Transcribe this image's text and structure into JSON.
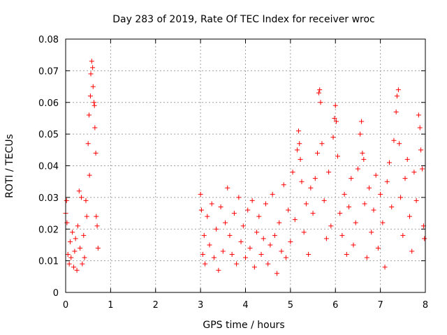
{
  "chart_data": {
    "type": "scatter",
    "title": "Day 283 of 2019, Rate Of TEC Index for receiver wroc",
    "xlabel": "GPS time / hours",
    "ylabel": "ROTI / TECUs",
    "xlim": [
      0,
      8
    ],
    "ylim": [
      0,
      0.08
    ],
    "xticks": [
      0,
      1,
      2,
      3,
      4,
      5,
      6,
      7,
      8
    ],
    "yticks": [
      0,
      0.01,
      0.02,
      0.03,
      0.04,
      0.05,
      0.06,
      0.07,
      0.08
    ],
    "xtick_labels": [
      "0",
      "1",
      "2",
      "3",
      "4",
      "5",
      "6",
      "7",
      "8"
    ],
    "ytick_labels": [
      "0",
      "0.01",
      "0.02",
      "0.03",
      "0.04",
      "0.05",
      "0.06",
      "0.07",
      "0.08"
    ],
    "grid": true,
    "marker": "+",
    "color": "#ff0000",
    "series": [
      {
        "name": "ROTI",
        "points": [
          [
            0.0,
            0.025
          ],
          [
            0.02,
            0.029
          ],
          [
            0.03,
            0.022
          ],
          [
            0.05,
            0.012
          ],
          [
            0.08,
            0.009
          ],
          [
            0.1,
            0.016
          ],
          [
            0.12,
            0.011
          ],
          [
            0.15,
            0.019
          ],
          [
            0.18,
            0.008
          ],
          [
            0.2,
            0.013
          ],
          [
            0.22,
            0.017
          ],
          [
            0.25,
            0.007
          ],
          [
            0.27,
            0.021
          ],
          [
            0.3,
            0.032
          ],
          [
            0.32,
            0.014
          ],
          [
            0.35,
            0.03
          ],
          [
            0.37,
            0.009
          ],
          [
            0.4,
            0.018
          ],
          [
            0.42,
            0.011
          ],
          [
            0.45,
            0.029
          ],
          [
            0.47,
            0.024
          ],
          [
            0.5,
            0.047
          ],
          [
            0.52,
            0.056
          ],
          [
            0.53,
            0.037
          ],
          [
            0.55,
            0.062
          ],
          [
            0.56,
            0.069
          ],
          [
            0.58,
            0.073
          ],
          [
            0.6,
            0.071
          ],
          [
            0.61,
            0.065
          ],
          [
            0.63,
            0.06
          ],
          [
            0.64,
            0.059
          ],
          [
            0.65,
            0.052
          ],
          [
            0.67,
            0.044
          ],
          [
            0.68,
            0.024
          ],
          [
            0.7,
            0.021
          ],
          [
            0.72,
            0.014
          ],
          [
            3.0,
            0.031
          ],
          [
            3.02,
            0.026
          ],
          [
            3.05,
            0.012
          ],
          [
            3.08,
            0.018
          ],
          [
            3.1,
            0.009
          ],
          [
            3.15,
            0.024
          ],
          [
            3.2,
            0.015
          ],
          [
            3.25,
            0.028
          ],
          [
            3.3,
            0.011
          ],
          [
            3.35,
            0.02
          ],
          [
            3.4,
            0.007
          ],
          [
            3.45,
            0.027
          ],
          [
            3.5,
            0.013
          ],
          [
            3.55,
            0.022
          ],
          [
            3.6,
            0.033
          ],
          [
            3.65,
            0.018
          ],
          [
            3.7,
            0.012
          ],
          [
            3.75,
            0.025
          ],
          [
            3.8,
            0.009
          ],
          [
            3.85,
            0.03
          ],
          [
            3.9,
            0.016
          ],
          [
            3.95,
            0.021
          ],
          [
            4.0,
            0.011
          ],
          [
            4.05,
            0.026
          ],
          [
            4.1,
            0.014
          ],
          [
            4.15,
            0.029
          ],
          [
            4.2,
            0.008
          ],
          [
            4.25,
            0.019
          ],
          [
            4.3,
            0.024
          ],
          [
            4.35,
            0.012
          ],
          [
            4.4,
            0.017
          ],
          [
            4.45,
            0.028
          ],
          [
            4.5,
            0.009
          ],
          [
            4.55,
            0.015
          ],
          [
            4.6,
            0.031
          ],
          [
            4.65,
            0.018
          ],
          [
            4.7,
            0.006
          ],
          [
            4.75,
            0.022
          ],
          [
            4.8,
            0.013
          ],
          [
            4.85,
            0.034
          ],
          [
            4.9,
            0.011
          ],
          [
            4.95,
            0.026
          ],
          [
            5.0,
            0.016
          ],
          [
            5.05,
            0.038
          ],
          [
            5.1,
            0.023
          ],
          [
            5.15,
            0.045
          ],
          [
            5.18,
            0.051
          ],
          [
            5.2,
            0.047
          ],
          [
            5.22,
            0.042
          ],
          [
            5.25,
            0.035
          ],
          [
            5.3,
            0.019
          ],
          [
            5.35,
            0.028
          ],
          [
            5.4,
            0.012
          ],
          [
            5.45,
            0.033
          ],
          [
            5.5,
            0.025
          ],
          [
            5.55,
            0.036
          ],
          [
            5.6,
            0.044
          ],
          [
            5.63,
            0.063
          ],
          [
            5.65,
            0.064
          ],
          [
            5.67,
            0.06
          ],
          [
            5.7,
            0.047
          ],
          [
            5.75,
            0.029
          ],
          [
            5.8,
            0.017
          ],
          [
            5.85,
            0.038
          ],
          [
            5.9,
            0.021
          ],
          [
            5.95,
            0.049
          ],
          [
            5.98,
            0.055
          ],
          [
            6.0,
            0.059
          ],
          [
            6.02,
            0.054
          ],
          [
            6.05,
            0.043
          ],
          [
            6.1,
            0.025
          ],
          [
            6.15,
            0.018
          ],
          [
            6.2,
            0.031
          ],
          [
            6.25,
            0.012
          ],
          [
            6.3,
            0.027
          ],
          [
            6.35,
            0.036
          ],
          [
            6.4,
            0.015
          ],
          [
            6.45,
            0.022
          ],
          [
            6.5,
            0.039
          ],
          [
            6.55,
            0.05
          ],
          [
            6.58,
            0.054
          ],
          [
            6.6,
            0.044
          ],
          [
            6.63,
            0.042
          ],
          [
            6.65,
            0.028
          ],
          [
            6.7,
            0.011
          ],
          [
            6.75,
            0.033
          ],
          [
            6.8,
            0.019
          ],
          [
            6.85,
            0.026
          ],
          [
            6.9,
            0.037
          ],
          [
            6.95,
            0.014
          ],
          [
            7.0,
            0.031
          ],
          [
            7.05,
            0.022
          ],
          [
            7.1,
            0.008
          ],
          [
            7.15,
            0.035
          ],
          [
            7.2,
            0.041
          ],
          [
            7.25,
            0.027
          ],
          [
            7.3,
            0.048
          ],
          [
            7.35,
            0.057
          ],
          [
            7.37,
            0.062
          ],
          [
            7.4,
            0.064
          ],
          [
            7.42,
            0.047
          ],
          [
            7.45,
            0.03
          ],
          [
            7.5,
            0.018
          ],
          [
            7.55,
            0.036
          ],
          [
            7.6,
            0.042
          ],
          [
            7.65,
            0.024
          ],
          [
            7.7,
            0.013
          ],
          [
            7.75,
            0.038
          ],
          [
            7.8,
            0.029
          ],
          [
            7.85,
            0.056
          ],
          [
            7.88,
            0.052
          ],
          [
            7.9,
            0.045
          ],
          [
            7.93,
            0.039
          ],
          [
            7.96,
            0.021
          ],
          [
            7.98,
            0.017
          ]
        ]
      }
    ]
  }
}
